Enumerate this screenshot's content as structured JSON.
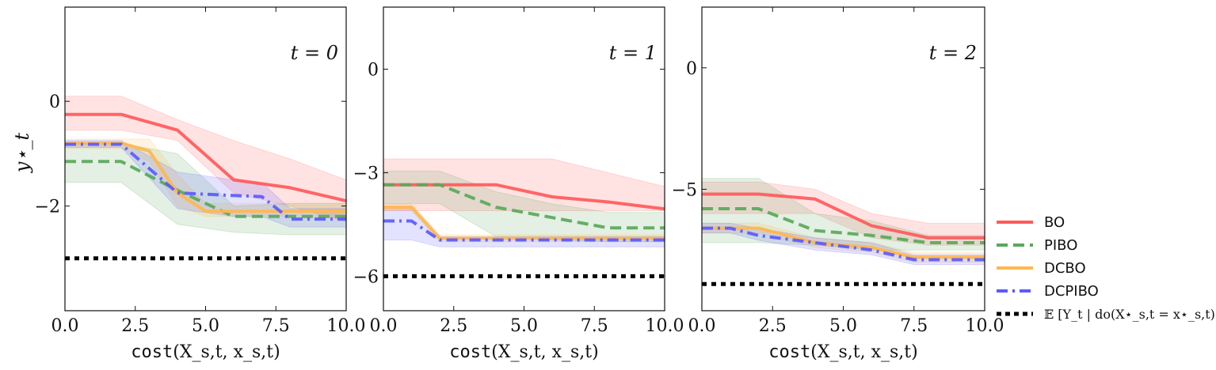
{
  "colors": {
    "BO": "#ff5a5a",
    "PIBO": "#5aa85a",
    "DCBO": "#ffb74d",
    "DCPIBO": "#5a5aff",
    "observational": "#000000"
  },
  "legend": [
    {
      "name": "BO",
      "style": "solid"
    },
    {
      "name": "PIBO",
      "style": "dashed"
    },
    {
      "name": "DCBO",
      "style": "solid"
    },
    {
      "name": "DCPIBO",
      "style": "dashdot"
    },
    {
      "name": "𝔼 [Y_t | do(X⋆_s,t = x⋆_s,t)]",
      "style": "dotted"
    }
  ],
  "chart_data": [
    {
      "type": "line",
      "annotation": "t = 0",
      "xlabel_code": "cost",
      "xlabel_args": "(X_s,t, x_s,t)",
      "ylabel": "y⋆_t",
      "xlim": [
        0,
        10
      ],
      "ylim": [
        -4,
        1.8
      ],
      "xticks": [
        "0.0",
        "2.5",
        "5.0",
        "7.5",
        "10.0"
      ],
      "yticks": [
        {
          "v": 0,
          "label": "0"
        },
        {
          "v": -2,
          "label": "−2"
        }
      ],
      "hline": -3.0,
      "series": [
        {
          "name": "BO",
          "x": [
            0,
            2,
            4,
            6,
            8,
            10
          ],
          "y": [
            -0.25,
            -0.25,
            -0.55,
            -1.5,
            -1.65,
            -1.9
          ],
          "lower": [
            -0.55,
            -0.55,
            -0.75,
            -1.75,
            -2.0,
            -2.3
          ],
          "upper": [
            0.1,
            0.1,
            -0.35,
            -0.75,
            -1.1,
            -1.5
          ]
        },
        {
          "name": "PIBO",
          "x": [
            0,
            2,
            4,
            6,
            8,
            10
          ],
          "y": [
            -1.15,
            -1.15,
            -1.7,
            -2.2,
            -2.2,
            -2.2
          ],
          "lower": [
            -1.55,
            -1.55,
            -2.35,
            -2.5,
            -2.55,
            -2.55
          ],
          "upper": [
            -0.8,
            -0.8,
            -1.0,
            -2.0,
            -1.95,
            -1.95
          ]
        },
        {
          "name": "DCBO",
          "x": [
            0,
            2,
            3,
            4,
            5,
            10
          ],
          "y": [
            -0.8,
            -0.8,
            -0.95,
            -1.75,
            -2.1,
            -2.1
          ],
          "lower": [
            -0.9,
            -0.9,
            -1.15,
            -2.0,
            -2.2,
            -2.2
          ],
          "upper": [
            -0.72,
            -0.72,
            -0.72,
            -1.4,
            -1.95,
            -1.95
          ]
        },
        {
          "name": "DCPIBO",
          "x": [
            0,
            2,
            4,
            6,
            7,
            8,
            10
          ],
          "y": [
            -0.82,
            -0.82,
            -1.75,
            -1.8,
            -1.82,
            -2.25,
            -2.25
          ],
          "lower": [
            -0.88,
            -0.88,
            -2.05,
            -2.2,
            -2.2,
            -2.4,
            -2.4
          ],
          "upper": [
            -0.75,
            -0.75,
            -1.35,
            -1.5,
            -1.55,
            -2.05,
            -2.05
          ]
        }
      ]
    },
    {
      "type": "line",
      "annotation": "t = 1",
      "xlabel_code": "cost",
      "xlabel_args": "(X_s,t, x_s,t)",
      "ylabel": "",
      "xlim": [
        0,
        10
      ],
      "ylim": [
        -7,
        1.8
      ],
      "xticks": [
        "0.0",
        "2.5",
        "5.0",
        "7.5",
        "10.0"
      ],
      "yticks": [
        {
          "v": 0,
          "label": "0"
        },
        {
          "v": -3,
          "label": "−3"
        },
        {
          "v": -6,
          "label": "−6"
        }
      ],
      "hline": -6.0,
      "series": [
        {
          "name": "BO",
          "x": [
            0,
            2,
            4,
            6,
            8,
            10
          ],
          "y": [
            -3.35,
            -3.35,
            -3.35,
            -3.7,
            -3.85,
            -4.05
          ],
          "lower": [
            -4.1,
            -4.1,
            -4.1,
            -4.1,
            -4.1,
            -4.1
          ],
          "upper": [
            -2.6,
            -2.6,
            -2.6,
            -2.6,
            -3.0,
            -3.4
          ]
        },
        {
          "name": "PIBO",
          "x": [
            0,
            2,
            4,
            6,
            8,
            10
          ],
          "y": [
            -3.35,
            -3.35,
            -4.0,
            -4.3,
            -4.6,
            -4.6
          ],
          "lower": [
            -3.9,
            -3.9,
            -4.85,
            -4.95,
            -5.0,
            -5.0
          ],
          "upper": [
            -2.95,
            -2.95,
            -3.55,
            -3.9,
            -4.15,
            -4.15
          ]
        },
        {
          "name": "DCBO",
          "x": [
            0,
            1,
            2,
            10
          ],
          "y": [
            -4.0,
            -4.0,
            -4.9,
            -4.9
          ],
          "lower": [
            -4.1,
            -4.1,
            -5.0,
            -5.0
          ],
          "upper": [
            -3.9,
            -3.9,
            -4.8,
            -4.8
          ]
        },
        {
          "name": "DCPIBO",
          "x": [
            0,
            1,
            2,
            10
          ],
          "y": [
            -4.4,
            -4.4,
            -4.95,
            -4.95
          ],
          "lower": [
            -4.95,
            -4.95,
            -5.15,
            -5.15
          ],
          "upper": [
            -4.0,
            -4.0,
            -4.85,
            -4.85
          ]
        }
      ]
    },
    {
      "type": "line",
      "annotation": "t = 2",
      "xlabel_code": "cost",
      "xlabel_args": "(X_s,t, x_s,t)",
      "ylabel": "",
      "xlim": [
        0,
        10
      ],
      "ylim": [
        -10,
        2.5
      ],
      "xticks": [
        "0.0",
        "2.5",
        "5.0",
        "7.5",
        "10.0"
      ],
      "yticks": [
        {
          "v": 0,
          "label": "0"
        },
        {
          "v": -5,
          "label": "−5"
        }
      ],
      "hline": -8.9,
      "series": [
        {
          "name": "BO",
          "x": [
            0,
            2,
            4,
            6,
            8,
            10
          ],
          "y": [
            -5.2,
            -5.2,
            -5.4,
            -6.5,
            -7.0,
            -7.0
          ],
          "lower": [
            -6.0,
            -6.0,
            -6.0,
            -7.0,
            -7.3,
            -7.3
          ],
          "upper": [
            -4.7,
            -4.7,
            -5.0,
            -6.0,
            -6.4,
            -6.4
          ]
        },
        {
          "name": "PIBO",
          "x": [
            0,
            2,
            4,
            6,
            8,
            10
          ],
          "y": [
            -5.8,
            -5.8,
            -6.7,
            -6.9,
            -7.2,
            -7.2
          ],
          "lower": [
            -7.2,
            -7.2,
            -7.3,
            -7.5,
            -7.5,
            -7.5
          ],
          "upper": [
            -4.55,
            -4.55,
            -6.0,
            -6.3,
            -6.9,
            -6.9
          ]
        },
        {
          "name": "DCBO",
          "x": [
            0,
            1,
            2,
            4,
            6,
            7.5,
            10
          ],
          "y": [
            -6.6,
            -6.6,
            -6.6,
            -7.2,
            -7.4,
            -7.8,
            -7.8
          ],
          "lower": [
            -6.8,
            -6.8,
            -6.8,
            -7.4,
            -7.6,
            -8.0,
            -8.0
          ],
          "upper": [
            -6.4,
            -6.4,
            -6.4,
            -7.0,
            -7.2,
            -7.6,
            -7.6
          ]
        },
        {
          "name": "DCPIBO",
          "x": [
            0,
            1,
            2,
            4,
            6,
            7.5,
            10
          ],
          "y": [
            -6.6,
            -6.6,
            -6.9,
            -7.2,
            -7.5,
            -7.9,
            -7.9
          ],
          "lower": [
            -6.8,
            -6.8,
            -7.1,
            -7.5,
            -7.7,
            -8.1,
            -8.1
          ],
          "upper": [
            -6.4,
            -6.4,
            -6.6,
            -7.0,
            -7.2,
            -7.7,
            -7.7
          ]
        }
      ]
    }
  ]
}
